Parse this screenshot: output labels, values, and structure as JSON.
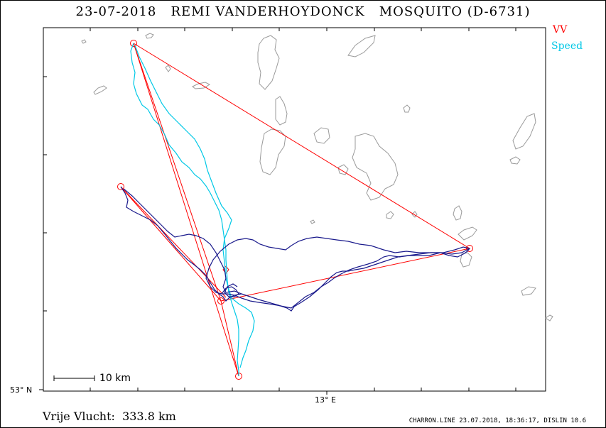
{
  "title": "23-07-2018   REMI VANDERHOYDONCK   MOSQUITO (D-6731)",
  "legend": {
    "vv_label": "VV",
    "speed_label": "Speed",
    "vv_color": "#ff0000",
    "speed_color": "#00c8e6"
  },
  "axes": {
    "lat_label": "53° N",
    "lon_label": "13° E"
  },
  "scale_bar": {
    "label": "10 km"
  },
  "distance_text": "Vrije Vlucht:  333.8 km",
  "footer_text": "CHARRON.LINE 23.07.2018, 18:36:17, DISLIN 10.6",
  "track_colors": {
    "course_line": "#ff0000",
    "flight_track_dark": "#1a1a8c",
    "flight_track_speed": "#00c8e6",
    "water_outline": "#9a9a9a"
  }
}
